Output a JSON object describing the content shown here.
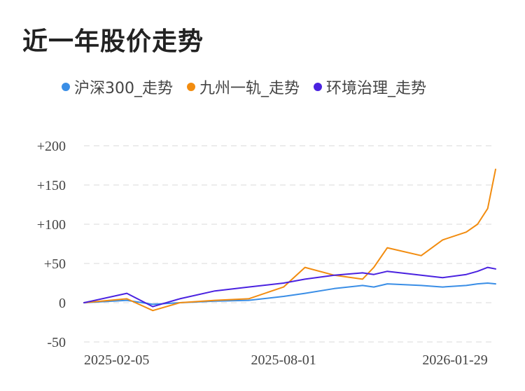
{
  "title": "近一年股价走势",
  "colors": {
    "hs300": "#3a8ee6",
    "jzyg": "#f28c0f",
    "hjzl": "#4a22e0",
    "grid": "#e6e6e6"
  },
  "chart_data": {
    "type": "line",
    "title": "近一年股价走势",
    "ylim": [
      -50,
      200
    ],
    "yticks": [
      "+200",
      "+150",
      "+100",
      "+50",
      "0",
      "-50"
    ],
    "ytick_values": [
      200,
      150,
      100,
      50,
      0,
      -50
    ],
    "xticks": [
      "2025-02-05",
      "2025-08-01",
      "2026-01-29"
    ],
    "x": [
      "2025-02-05",
      "2025-03-15",
      "2025-04-07",
      "2025-05-01",
      "2025-06-01",
      "2025-07-01",
      "2025-08-01",
      "2025-08-20",
      "2025-09-15",
      "2025-10-10",
      "2025-10-20",
      "2025-11-01",
      "2025-12-01",
      "2025-12-20",
      "2026-01-10",
      "2026-01-20",
      "2026-01-29",
      "2026-02-05"
    ],
    "grid": true,
    "legend_position": "top",
    "series": [
      {
        "name": "沪深300_走势",
        "key": "hs300",
        "values": [
          0,
          3,
          -2,
          0,
          2,
          3,
          8,
          12,
          18,
          22,
          20,
          24,
          22,
          20,
          22,
          24,
          25,
          24
        ]
      },
      {
        "name": "九州一轨_走势",
        "key": "jzyg",
        "values": [
          0,
          5,
          -10,
          0,
          3,
          5,
          20,
          45,
          35,
          30,
          45,
          70,
          60,
          80,
          90,
          100,
          120,
          170
        ]
      },
      {
        "name": "环境治理_走势",
        "key": "hjzl",
        "values": [
          0,
          12,
          -5,
          5,
          15,
          20,
          25,
          30,
          35,
          38,
          36,
          40,
          35,
          32,
          36,
          40,
          45,
          43
        ]
      }
    ]
  }
}
